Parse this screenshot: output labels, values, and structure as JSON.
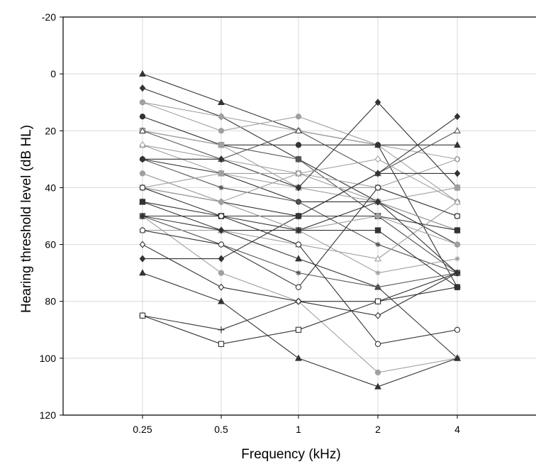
{
  "chart_data": {
    "type": "line",
    "title": "",
    "xlabel": "Frequency (kHz)",
    "ylabel": "Hearing threshold level (dB HL)",
    "categories": [
      "0.25",
      "0.5",
      "1",
      "2",
      "4"
    ],
    "y_ticks": [
      -20,
      0,
      20,
      40,
      60,
      80,
      100,
      120
    ],
    "y_tick_labels": [
      "-20",
      "0",
      "20",
      "40",
      "60",
      "80",
      "100",
      "120"
    ],
    "ylim": [
      -20,
      120
    ],
    "y_inverted": true,
    "grid": true,
    "legend": "none",
    "colors": {
      "dark": "#333333",
      "mid": "#555555",
      "light": "#a0a0a0",
      "grid": "#d8d8d8"
    },
    "series": [
      {
        "values": [
          0,
          10,
          20,
          25,
          25
        ],
        "marker": "triangle",
        "tone": "dark"
      },
      {
        "values": [
          5,
          15,
          30,
          45,
          55
        ],
        "marker": "diamond",
        "tone": "dark"
      },
      {
        "values": [
          10,
          15,
          20,
          25,
          45
        ],
        "marker": "circle",
        "tone": "light"
      },
      {
        "values": [
          10,
          20,
          15,
          25,
          30
        ],
        "marker": "circle",
        "tone": "light"
      },
      {
        "values": [
          15,
          25,
          25,
          25,
          75
        ],
        "marker": "circle",
        "tone": "dark"
      },
      {
        "values": [
          20,
          25,
          30,
          50,
          70
        ],
        "marker": "square",
        "tone": "mid"
      },
      {
        "values": [
          20,
          25,
          40,
          40,
          50
        ],
        "marker": "square",
        "tone": "light"
      },
      {
        "values": [
          20,
          30,
          20,
          35,
          20
        ],
        "marker": "triangle-open",
        "tone": "mid"
      },
      {
        "values": [
          25,
          35,
          40,
          45,
          55
        ],
        "marker": "triangle",
        "tone": "light"
      },
      {
        "values": [
          25,
          30,
          35,
          40,
          30
        ],
        "marker": "diamond-open",
        "tone": "light"
      },
      {
        "values": [
          30,
          35,
          45,
          45,
          60
        ],
        "marker": "circle",
        "tone": "dark"
      },
      {
        "values": [
          30,
          40,
          45,
          60,
          70
        ],
        "marker": "star",
        "tone": "mid"
      },
      {
        "values": [
          30,
          30,
          40,
          10,
          40
        ],
        "marker": "diamond",
        "tone": "dark"
      },
      {
        "values": [
          35,
          45,
          55,
          70,
          65
        ],
        "marker": "star",
        "tone": "light"
      },
      {
        "values": [
          40,
          35,
          35,
          45,
          40
        ],
        "marker": "square",
        "tone": "light"
      },
      {
        "values": [
          40,
          45,
          50,
          35,
          15
        ],
        "marker": "diamond",
        "tone": "dark"
      },
      {
        "values": [
          40,
          45,
          35,
          30,
          45
        ],
        "marker": "diamond-open",
        "tone": "light"
      },
      {
        "values": [
          45,
          50,
          55,
          55,
          75
        ],
        "marker": "square",
        "tone": "dark"
      },
      {
        "values": [
          45,
          55,
          65,
          75,
          100
        ],
        "marker": "triangle",
        "tone": "dark"
      },
      {
        "values": [
          50,
          50,
          50,
          50,
          55
        ],
        "marker": "square",
        "tone": "dark"
      },
      {
        "values": [
          50,
          60,
          70,
          75,
          70
        ],
        "marker": "star",
        "tone": "mid"
      },
      {
        "values": [
          50,
          70,
          80,
          105,
          100
        ],
        "marker": "circle",
        "tone": "light"
      },
      {
        "values": [
          55,
          55,
          60,
          65,
          45
        ],
        "marker": "triangle-open",
        "tone": "light"
      },
      {
        "values": [
          55,
          60,
          75,
          40,
          50
        ],
        "marker": "circle-open",
        "tone": "dark"
      },
      {
        "values": [
          65,
          65,
          50,
          35,
          35
        ],
        "marker": "diamond",
        "tone": "dark"
      },
      {
        "values": [
          70,
          80,
          100,
          110,
          100
        ],
        "marker": "triangle",
        "tone": "dark"
      },
      {
        "values": [
          85,
          90,
          80,
          80,
          75
        ],
        "marker": "plus",
        "tone": "dark"
      },
      {
        "values": [
          85,
          95,
          90,
          80,
          70
        ],
        "marker": "square-open",
        "tone": "dark"
      },
      {
        "values": [
          60,
          75,
          80,
          85,
          70
        ],
        "marker": "diamond-open",
        "tone": "dark"
      },
      {
        "values": [
          40,
          50,
          60,
          95,
          90
        ],
        "marker": "circle-open",
        "tone": "dark"
      },
      {
        "values": [
          35,
          45,
          55,
          50,
          60
        ],
        "marker": "circle",
        "tone": "light"
      },
      {
        "values": [
          50,
          55,
          55,
          45,
          70
        ],
        "marker": "diamond",
        "tone": "dark"
      }
    ]
  }
}
